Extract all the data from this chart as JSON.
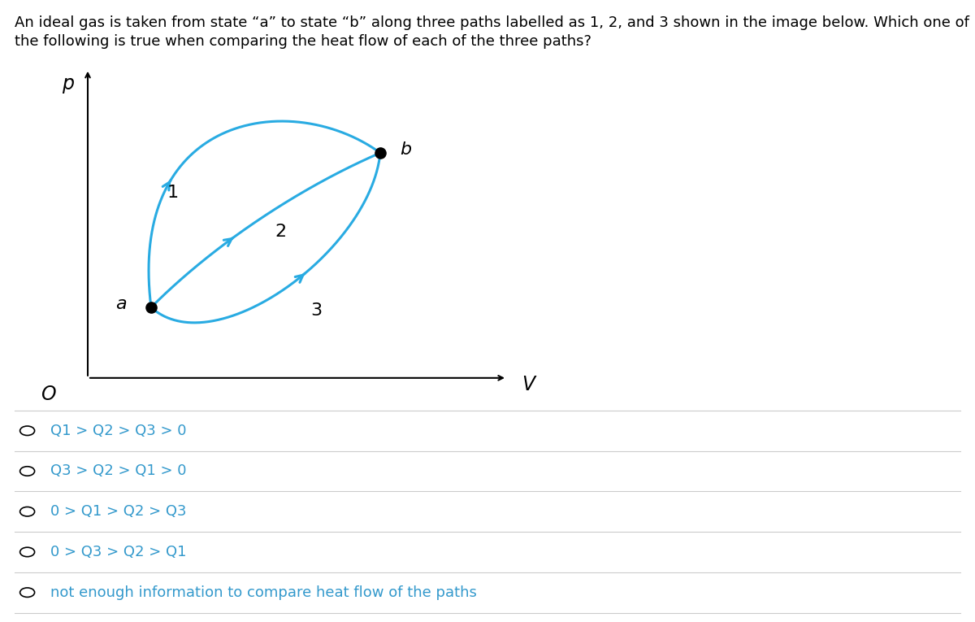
{
  "title_line1": "An ideal gas is taken from state “a” to state “b” along three paths labelled as 1, 2, and 3 shown in the image below. Which one of",
  "title_line2": "the following is true when comparing the heat flow of each of the three paths?",
  "curve_color": "#29ABE2",
  "background_color": "#ffffff",
  "options": [
    "Q1 > Q2 > Q3 > 0",
    "Q3 > Q2 > Q1 > 0",
    "0 > Q1 > Q2 > Q3",
    "0 > Q3 > Q2 > Q1",
    "not enough information to compare heat flow of the paths"
  ],
  "option_color": "#3399CC",
  "title_fontsize": 13,
  "option_fontsize": 13
}
